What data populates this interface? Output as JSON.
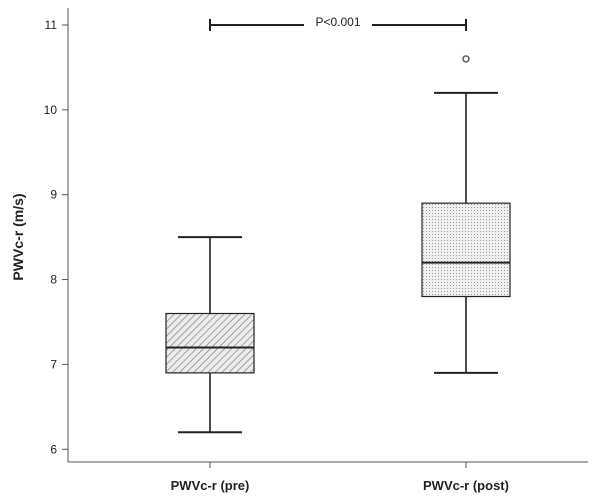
{
  "chart_data": {
    "type": "box",
    "categories": [
      "PWVc-r (pre)",
      "PWVc-r (post)"
    ],
    "ylabel": "PWVc-r (m/s)",
    "xlabel": "",
    "ylim": [
      5.85,
      11.2
    ],
    "yticks": [
      6,
      7,
      8,
      9,
      10,
      11
    ],
    "boxes": [
      {
        "label": "PWVc-r (pre)",
        "min": 6.2,
        "q1": 6.9,
        "median": 7.2,
        "q3": 7.6,
        "max": 8.5,
        "outliers": [],
        "pattern": "diagonal-hatch"
      },
      {
        "label": "PWVc-r (post)",
        "min": 6.9,
        "q1": 7.8,
        "median": 8.2,
        "q3": 8.9,
        "max": 10.2,
        "outliers": [
          10.6
        ],
        "pattern": "dotted"
      }
    ],
    "annotations": [
      {
        "text": "P<0.001",
        "type": "significance-bracket",
        "y": 11.0,
        "between": [
          "PWVc-r (pre)",
          "PWVc-r (post)"
        ]
      }
    ],
    "grid": false,
    "legend": "none"
  },
  "colors": {
    "stroke": "#222222",
    "box_fill": "#e6e6e6",
    "axis": "#555555"
  }
}
